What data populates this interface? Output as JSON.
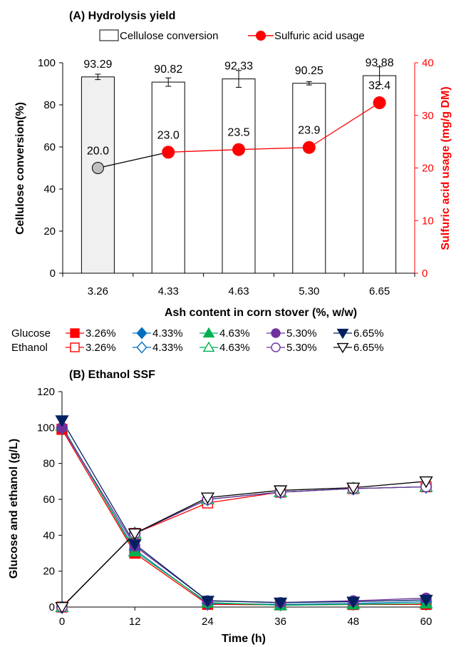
{
  "chart_data": [
    {
      "type": "bar",
      "title": "(A) Hydrolysis yield",
      "xlabel": "Ash content in corn stover (%, w/w)",
      "ylabel": "Cellulose conversion(%)",
      "y2label": "Sulfuric acid usage (mg/g DM)",
      "ylim": [
        0,
        100
      ],
      "y2lim": [
        0,
        40
      ],
      "yticks": [
        "0",
        "20",
        "40",
        "60",
        "80",
        "100"
      ],
      "y2ticks": [
        "0",
        "10",
        "20",
        "30",
        "40"
      ],
      "categories": [
        "3.26",
        "4.33",
        "4.63",
        "5.30",
        "6.65"
      ],
      "grid": false,
      "legend_position": "top",
      "legend": [
        "Cellulose conversion",
        "Sulfuric acid usage"
      ],
      "series": [
        {
          "name": "Cellulose conversion",
          "kind": "bar",
          "axis": "left",
          "values": [
            93.29,
            90.82,
            92.33,
            90.25,
            93.88
          ],
          "labels": [
            "93.29",
            "90.82",
            "92.33",
            "90.25",
            "93.88"
          ],
          "errors": [
            1.3,
            2.0,
            4.0,
            0.8,
            4.2
          ]
        },
        {
          "name": "Sulfuric acid usage",
          "kind": "line",
          "axis": "right",
          "values": [
            20.0,
            23.0,
            23.5,
            23.9,
            32.4
          ],
          "labels": [
            "20.0",
            "23.0",
            "23.5",
            "23.9",
            "32.4"
          ]
        }
      ],
      "colors": {
        "bar_first_fill": "#f0f0f0",
        "bar_fill": "#ffffff",
        "line": "#ff0000",
        "marker": "#ff0000",
        "first_marker": "#bfbfbf",
        "first_segment": "#000000",
        "right_axis": "#ff0000"
      }
    },
    {
      "type": "line",
      "title": "(B) Ethanol SSF",
      "xlabel": "Time (h)",
      "ylabel": "Glucose and ethanol (g/L)",
      "x": [
        0,
        12,
        24,
        36,
        48,
        60
      ],
      "xlim": [
        0,
        60
      ],
      "ylim": [
        0,
        120
      ],
      "xticks": [
        "0",
        "12",
        "24",
        "36",
        "48",
        "60"
      ],
      "yticks": [
        "0",
        "20",
        "40",
        "60",
        "80",
        "100",
        "120"
      ],
      "grid": false,
      "legend_position": "between panels",
      "legend_rows": [
        "Glucose",
        "Ethanol"
      ],
      "legend_labels": [
        "3.26%",
        "4.33%",
        "4.63%",
        "5.30%",
        "6.65%"
      ],
      "series": [
        {
          "name": "3.26%",
          "group": "Glucose",
          "marker": "square",
          "filled": true,
          "color": "#ff0000",
          "values": [
            99,
            30,
            1.5,
            1.2,
            1.4,
            1.5
          ]
        },
        {
          "name": "4.33%",
          "group": "Glucose",
          "marker": "diamond",
          "filled": true,
          "color": "#0070c0",
          "values": [
            100,
            32,
            2,
            1.5,
            2,
            3
          ]
        },
        {
          "name": "4.63%",
          "group": "Glucose",
          "marker": "triangle",
          "filled": true,
          "color": "#00b050",
          "values": [
            101,
            31,
            2.5,
            1,
            1.5,
            2
          ]
        },
        {
          "name": "5.30%",
          "group": "Glucose",
          "marker": "circle",
          "filled": true,
          "color": "#7030a0",
          "values": [
            100,
            34,
            3.5,
            2.5,
            3.5,
            5
          ]
        },
        {
          "name": "6.65%",
          "group": "Glucose",
          "marker": "triangle-down",
          "filled": true,
          "color": "#002060",
          "values": [
            104,
            35,
            3.5,
            2.5,
            3,
            4
          ]
        },
        {
          "name": "3.26%",
          "group": "Ethanol",
          "marker": "square",
          "filled": false,
          "color": "#ff0000",
          "values": [
            0,
            41,
            58,
            64,
            66,
            67
          ]
        },
        {
          "name": "4.33%",
          "group": "Ethanol",
          "marker": "diamond",
          "filled": false,
          "color": "#0070c0",
          "values": [
            0,
            41,
            60,
            64,
            66,
            67
          ]
        },
        {
          "name": "4.63%",
          "group": "Ethanol",
          "marker": "triangle",
          "filled": false,
          "color": "#00b050",
          "values": [
            0,
            41,
            60,
            64,
            66,
            67
          ]
        },
        {
          "name": "5.30%",
          "group": "Ethanol",
          "marker": "circle",
          "filled": false,
          "color": "#7030a0",
          "values": [
            0,
            41,
            60,
            64,
            66,
            67
          ]
        },
        {
          "name": "6.65%",
          "group": "Ethanol",
          "marker": "triangle-down",
          "filled": false,
          "color": "#000000",
          "values": [
            0,
            41,
            61,
            65,
            66.5,
            70
          ]
        }
      ]
    }
  ]
}
